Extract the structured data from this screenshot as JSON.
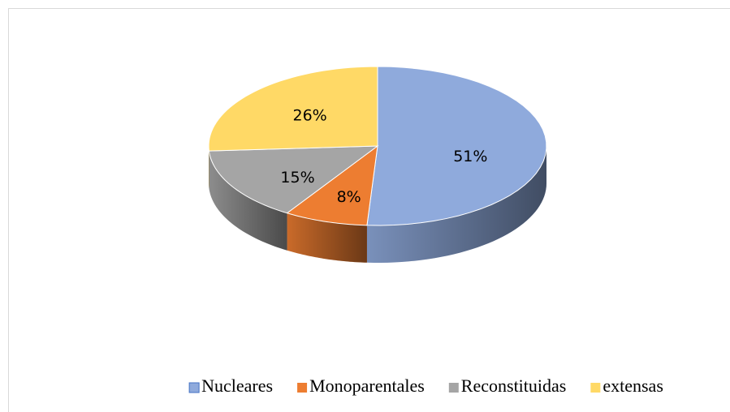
{
  "chart_data": {
    "type": "pie",
    "categories": [
      "Nucleares",
      "Monoparentales",
      "Reconstituidas",
      "extensas"
    ],
    "values": [
      51,
      8,
      15,
      26
    ],
    "value_labels": [
      "51%",
      "8%",
      "15%",
      "26%"
    ],
    "colors": [
      "#8faadc",
      "#ed7d31",
      "#a5a5a5",
      "#ffd966"
    ],
    "legend": "bottom"
  }
}
